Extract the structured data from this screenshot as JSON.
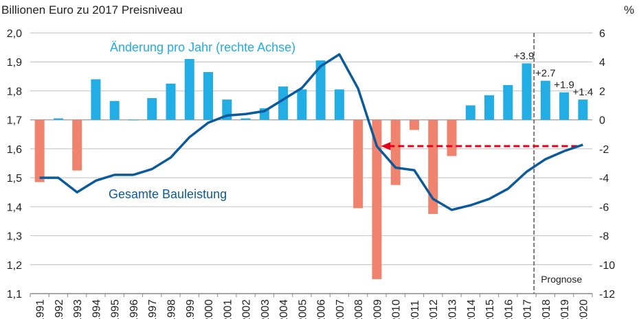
{
  "chart_data": {
    "type": "bar+line",
    "left_axis_title": "Billionen Euro zu 2017 Preisniveau",
    "right_axis_title": "%",
    "left_ylim": [
      1.1,
      2.0
    ],
    "left_ticks": [
      "1,1",
      "1,2",
      "1,3",
      "1,4",
      "1,5",
      "1,6",
      "1,7",
      "1,8",
      "1,9",
      "2,0"
    ],
    "right_ylim": [
      -12,
      6
    ],
    "right_ticks": [
      "-12",
      "-10",
      "-8",
      "-6",
      "-4",
      "-2",
      "0",
      "2",
      "4",
      "6"
    ],
    "grid": true,
    "categories": [
      "1991",
      "1992",
      "1993",
      "1994",
      "1995",
      "1996",
      "1997",
      "1998",
      "1999",
      "2000",
      "2001",
      "2002",
      "2003",
      "2004",
      "2005",
      "2006",
      "2007",
      "2008",
      "2009",
      "2010",
      "2011",
      "2012",
      "2013",
      "2014",
      "2015",
      "2016",
      "2017",
      "2018",
      "2019",
      "2020"
    ],
    "bars": {
      "name": "Änderung pro Jahr (rechte Achse)",
      "axis": "right",
      "values": [
        -4.3,
        0.1,
        -3.5,
        2.8,
        1.3,
        0.0,
        1.5,
        2.5,
        4.2,
        3.3,
        1.4,
        0.1,
        0.8,
        2.3,
        2.1,
        4.1,
        2.1,
        -6.1,
        -11.0,
        -4.5,
        -0.7,
        -6.5,
        -2.5,
        1.0,
        1.7,
        2.4,
        3.9,
        2.7,
        1.9,
        1.4
      ],
      "positive_color": "#22ade4",
      "negative_color": "#ef836e"
    },
    "line": {
      "name": "Gesamte Bauleistung",
      "axis": "left",
      "values": [
        1.5,
        1.5,
        1.45,
        1.49,
        1.51,
        1.51,
        1.53,
        1.57,
        1.64,
        1.69,
        1.715,
        1.72,
        1.73,
        1.77,
        1.81,
        1.885,
        1.926,
        1.808,
        1.609,
        1.535,
        1.526,
        1.427,
        1.389,
        1.405,
        1.427,
        1.462,
        1.521,
        1.564,
        1.592,
        1.614
      ],
      "color": "#0a5a9c"
    },
    "data_labels": [
      {
        "category": "2017",
        "text": "+3.9"
      },
      {
        "category": "2018",
        "text": "+2.7"
      },
      {
        "category": "2019",
        "text": "+1.9"
      },
      {
        "category": "2020",
        "text": "+1.4"
      }
    ],
    "forecast_divider": {
      "after": "2017",
      "label": "Prognose"
    },
    "arrow": {
      "from": "2020",
      "to": "2009",
      "color": "#e3001b"
    }
  }
}
